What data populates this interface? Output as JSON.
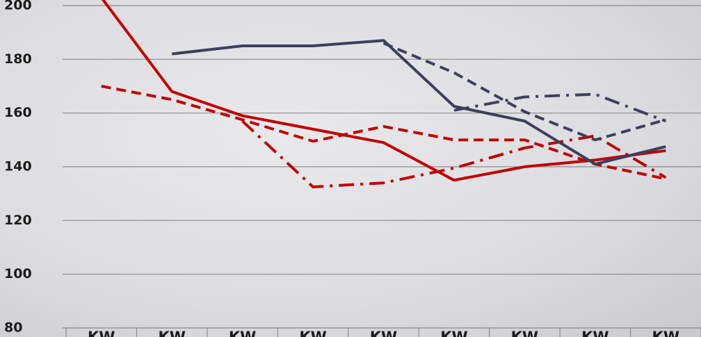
{
  "chart_data": {
    "type": "line",
    "categories": [
      "KW",
      "KW",
      "KW",
      "KW",
      "KW",
      "KW",
      "KW",
      "KW",
      "KW"
    ],
    "ylim": [
      80,
      200
    ],
    "yticks": [
      80,
      100,
      120,
      140,
      160,
      180,
      200
    ],
    "grid": true,
    "series": [
      {
        "color": "#c00000",
        "dash": "solid",
        "values": [
          203,
          168,
          159,
          154,
          149,
          135,
          140,
          142.5,
          146
        ]
      },
      {
        "color": "#c00000",
        "dash": "dash",
        "values": [
          170,
          165,
          157.5,
          149.5,
          155,
          150,
          150,
          141,
          135.5
        ]
      },
      {
        "color": "#c00000",
        "dash": "dashdot",
        "values": [
          null,
          null,
          157,
          132.5,
          134,
          139.5,
          147,
          151.5,
          136
        ]
      },
      {
        "color": "#3c3f5e",
        "dash": "solid",
        "values": [
          null,
          182,
          185,
          185,
          187,
          162.5,
          157,
          141,
          147.5
        ]
      },
      {
        "color": "#3c3f5e",
        "dash": "dash",
        "values": [
          null,
          null,
          null,
          null,
          186,
          175,
          160.5,
          150,
          157.5
        ]
      },
      {
        "color": "#3c3f5e",
        "dash": "dashdot",
        "values": [
          null,
          null,
          null,
          null,
          null,
          161,
          166,
          167,
          157
        ]
      }
    ]
  }
}
